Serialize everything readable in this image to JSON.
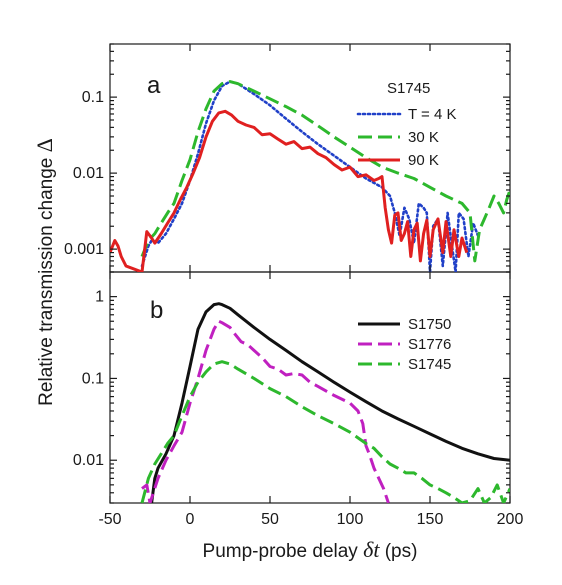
{
  "chart_data": [
    {
      "panel": "a",
      "type": "line",
      "yscale": "log",
      "xlim": [
        -50,
        200
      ],
      "ylim": [
        0.0005,
        0.5
      ],
      "xlabel": "Pump-probe delay δt (ps)",
      "ylabel": "Relative transmission change Δ",
      "yticks": [
        0.001,
        0.01,
        0.1
      ],
      "ytick_labels": [
        "0.001",
        "0.01",
        "0.1"
      ],
      "legend_title": "S1745",
      "legend_position": "top-right",
      "series": [
        {
          "name": "T = 4 K",
          "color": "#2040c8",
          "style": "dotted",
          "points": [
            [
              -30,
              0.0006
            ],
            [
              -26,
              0.0011
            ],
            [
              -24,
              0.0013
            ],
            [
              -20,
              0.0012
            ],
            [
              -15,
              0.0016
            ],
            [
              -10,
              0.0025
            ],
            [
              -5,
              0.004
            ],
            [
              0,
              0.008
            ],
            [
              5,
              0.018
            ],
            [
              10,
              0.045
            ],
            [
              15,
              0.09
            ],
            [
              20,
              0.14
            ],
            [
              25,
              0.16
            ],
            [
              30,
              0.15
            ],
            [
              40,
              0.11
            ],
            [
              50,
              0.078
            ],
            [
              60,
              0.052
            ],
            [
              70,
              0.035
            ],
            [
              80,
              0.024
            ],
            [
              90,
              0.017
            ],
            [
              100,
              0.012
            ],
            [
              110,
              0.0085
            ],
            [
              120,
              0.0065
            ],
            [
              125,
              0.005
            ],
            [
              128,
              0.003
            ],
            [
              131,
              0.0015
            ],
            [
              134,
              0.0035
            ],
            [
              137,
              0.0025
            ],
            [
              140,
              0.0012
            ],
            [
              143,
              0.004
            ],
            [
              146,
              0.0035
            ],
            [
              148,
              0.003
            ],
            [
              150,
              0.0005
            ],
            [
              152,
              0.002
            ],
            [
              155,
              0.0025
            ],
            [
              158,
              0.0006
            ],
            [
              161,
              0.003
            ],
            [
              164,
              0.001
            ],
            [
              166,
              0.0005
            ],
            [
              168,
              0.003
            ],
            [
              171,
              0.0025
            ],
            [
              174,
              0.0008
            ],
            [
              177,
              0.0022
            ],
            [
              180,
              0.0015
            ]
          ]
        },
        {
          "name": "30 K",
          "color": "#2db82d",
          "style": "dashed",
          "points": [
            [
              -30,
              0.0008
            ],
            [
              -26,
              0.0013
            ],
            [
              -22,
              0.0016
            ],
            [
              -18,
              0.0022
            ],
            [
              -14,
              0.003
            ],
            [
              -10,
              0.004
            ],
            [
              -5,
              0.008
            ],
            [
              0,
              0.015
            ],
            [
              5,
              0.035
            ],
            [
              10,
              0.07
            ],
            [
              15,
              0.12
            ],
            [
              20,
              0.15
            ],
            [
              25,
              0.16
            ],
            [
              30,
              0.15
            ],
            [
              40,
              0.12
            ],
            [
              50,
              0.095
            ],
            [
              60,
              0.075
            ],
            [
              70,
              0.058
            ],
            [
              80,
              0.042
            ],
            [
              90,
              0.03
            ],
            [
              100,
              0.022
            ],
            [
              110,
              0.016
            ],
            [
              120,
              0.012
            ],
            [
              130,
              0.01
            ],
            [
              140,
              0.0085
            ],
            [
              150,
              0.0065
            ],
            [
              160,
              0.005
            ],
            [
              170,
              0.004
            ],
            [
              175,
              0.003
            ],
            [
              178,
              0.0007
            ],
            [
              181,
              0.0018
            ],
            [
              184,
              0.0025
            ],
            [
              187,
              0.0035
            ],
            [
              190,
              0.005
            ],
            [
              193,
              0.004
            ],
            [
              196,
              0.003
            ],
            [
              198,
              0.0045
            ],
            [
              200,
              0.006
            ]
          ]
        },
        {
          "name": "90 K",
          "color": "#e02020",
          "style": "solid",
          "points": [
            [
              -50,
              0.0009
            ],
            [
              -47,
              0.0013
            ],
            [
              -45,
              0.0011
            ],
            [
              -43,
              0.0008
            ],
            [
              -40,
              0.0006
            ],
            [
              -30,
              0.0005
            ],
            [
              -27,
              0.0017
            ],
            [
              -24,
              0.0014
            ],
            [
              -22,
              0.0012
            ],
            [
              -18,
              0.0016
            ],
            [
              -14,
              0.0022
            ],
            [
              -10,
              0.003
            ],
            [
              -6,
              0.0045
            ],
            [
              -2,
              0.0065
            ],
            [
              2,
              0.01
            ],
            [
              6,
              0.016
            ],
            [
              10,
              0.03
            ],
            [
              14,
              0.048
            ],
            [
              18,
              0.062
            ],
            [
              22,
              0.065
            ],
            [
              26,
              0.058
            ],
            [
              30,
              0.048
            ],
            [
              35,
              0.043
            ],
            [
              40,
              0.04
            ],
            [
              45,
              0.032
            ],
            [
              50,
              0.033
            ],
            [
              55,
              0.028
            ],
            [
              60,
              0.024
            ],
            [
              65,
              0.026
            ],
            [
              70,
              0.021
            ],
            [
              75,
              0.022
            ],
            [
              80,
              0.018
            ],
            [
              85,
              0.016
            ],
            [
              90,
              0.013
            ],
            [
              95,
              0.011
            ],
            [
              100,
              0.012
            ],
            [
              105,
              0.009
            ],
            [
              110,
              0.0095
            ],
            [
              115,
              0.008
            ],
            [
              118,
              0.0085
            ],
            [
              120,
              0.009
            ],
            [
              122,
              0.0035
            ],
            [
              124,
              0.0018
            ],
            [
              126,
              0.0012
            ],
            [
              128,
              0.0028
            ],
            [
              130,
              0.003
            ],
            [
              132,
              0.0013
            ],
            [
              134,
              0.0016
            ],
            [
              136,
              0.0023
            ],
            [
              138,
              0.0008
            ],
            [
              140,
              0.0018
            ],
            [
              142,
              0.0022
            ],
            [
              144,
              0.0007
            ],
            [
              146,
              0.0016
            ],
            [
              148,
              0.0024
            ],
            [
              150,
              0.0008
            ],
            [
              152,
              0.0018
            ],
            [
              155,
              0.0025
            ],
            [
              158,
              0.0009
            ],
            [
              160,
              0.0023
            ],
            [
              163,
              0.0008
            ],
            [
              165,
              0.0018
            ],
            [
              168,
              0.0008
            ],
            [
              170,
              0.0014
            ],
            [
              173,
              0.0009
            ]
          ]
        }
      ]
    },
    {
      "panel": "b",
      "type": "line",
      "yscale": "log",
      "xlim": [
        -50,
        200
      ],
      "ylim": [
        0.003,
        2
      ],
      "xlabel": "Pump-probe delay δt (ps)",
      "ylabel": "Relative transmission change Δ",
      "xticks": [
        -50,
        0,
        50,
        100,
        150,
        200
      ],
      "xtick_labels": [
        "-50",
        "0",
        "50",
        "100",
        "150",
        "200"
      ],
      "yticks": [
        0.01,
        0.1,
        1
      ],
      "ytick_labels": [
        "0.01",
        "0.1",
        "1"
      ],
      "legend_position": "top-right",
      "series": [
        {
          "name": "S1750",
          "color": "#111111",
          "style": "solid",
          "points": [
            [
              -24,
              0.003
            ],
            [
              -22,
              0.006
            ],
            [
              -20,
              0.008
            ],
            [
              -15,
              0.012
            ],
            [
              -10,
              0.02
            ],
            [
              -5,
              0.05
            ],
            [
              0,
              0.14
            ],
            [
              5,
              0.4
            ],
            [
              10,
              0.65
            ],
            [
              15,
              0.8
            ],
            [
              18,
              0.82
            ],
            [
              20,
              0.8
            ],
            [
              25,
              0.72
            ],
            [
              30,
              0.6
            ],
            [
              40,
              0.42
            ],
            [
              50,
              0.3
            ],
            [
              60,
              0.22
            ],
            [
              70,
              0.16
            ],
            [
              80,
              0.12
            ],
            [
              90,
              0.09
            ],
            [
              100,
              0.068
            ],
            [
              110,
              0.052
            ],
            [
              120,
              0.04
            ],
            [
              130,
              0.032
            ],
            [
              140,
              0.026
            ],
            [
              150,
              0.021
            ],
            [
              160,
              0.017
            ],
            [
              170,
              0.014
            ],
            [
              180,
              0.012
            ],
            [
              190,
              0.0105
            ],
            [
              200,
              0.01
            ]
          ]
        },
        {
          "name": "S1776",
          "color": "#c020c0",
          "style": "dashed",
          "points": [
            [
              -30,
              0.0045
            ],
            [
              -27,
              0.005
            ],
            [
              -25,
              0.003
            ],
            [
              -20,
              0.006
            ],
            [
              -15,
              0.01
            ],
            [
              -10,
              0.015
            ],
            [
              -5,
              0.022
            ],
            [
              0,
              0.05
            ],
            [
              5,
              0.1
            ],
            [
              10,
              0.22
            ],
            [
              15,
              0.4
            ],
            [
              18,
              0.5
            ],
            [
              20,
              0.48
            ],
            [
              25,
              0.42
            ],
            [
              28,
              0.35
            ],
            [
              32,
              0.28
            ],
            [
              36,
              0.26
            ],
            [
              40,
              0.22
            ],
            [
              45,
              0.18
            ],
            [
              50,
              0.14
            ],
            [
              55,
              0.13
            ],
            [
              60,
              0.11
            ],
            [
              65,
              0.115
            ],
            [
              70,
              0.11
            ],
            [
              75,
              0.09
            ],
            [
              80,
              0.08
            ],
            [
              90,
              0.062
            ],
            [
              100,
              0.05
            ],
            [
              105,
              0.04
            ],
            [
              108,
              0.028
            ],
            [
              110,
              0.015
            ],
            [
              112,
              0.012
            ],
            [
              115,
              0.008
            ],
            [
              118,
              0.006
            ],
            [
              121,
              0.0045
            ],
            [
              124,
              0.003
            ]
          ]
        },
        {
          "name": "S1745",
          "color": "#2db82d",
          "style": "dashed",
          "points": [
            [
              -30,
              0.003
            ],
            [
              -26,
              0.006
            ],
            [
              -22,
              0.009
            ],
            [
              -18,
              0.012
            ],
            [
              -14,
              0.016
            ],
            [
              -10,
              0.02
            ],
            [
              -5,
              0.035
            ],
            [
              0,
              0.06
            ],
            [
              5,
              0.09
            ],
            [
              10,
              0.12
            ],
            [
              15,
              0.15
            ],
            [
              20,
              0.16
            ],
            [
              25,
              0.15
            ],
            [
              30,
              0.13
            ],
            [
              40,
              0.1
            ],
            [
              50,
              0.075
            ],
            [
              60,
              0.06
            ],
            [
              70,
              0.045
            ],
            [
              80,
              0.035
            ],
            [
              90,
              0.028
            ],
            [
              100,
              0.022
            ],
            [
              110,
              0.016
            ],
            [
              115,
              0.014
            ],
            [
              120,
              0.011
            ],
            [
              125,
              0.009
            ],
            [
              130,
              0.008
            ],
            [
              135,
              0.007
            ],
            [
              140,
              0.007
            ],
            [
              145,
              0.006
            ],
            [
              150,
              0.005
            ],
            [
              155,
              0.0045
            ],
            [
              160,
              0.004
            ],
            [
              165,
              0.0035
            ],
            [
              170,
              0.003
            ],
            [
              175,
              0.0032
            ],
            [
              180,
              0.0045
            ],
            [
              184,
              0.003
            ],
            [
              188,
              0.0035
            ],
            [
              192,
              0.005
            ],
            [
              196,
              0.003
            ],
            [
              200,
              0.0045
            ]
          ]
        }
      ]
    }
  ],
  "figure": {
    "xlabel_prefix": "Pump-probe delay ",
    "xlabel_var": "δt",
    "xlabel_unit": " (ps)",
    "ylabel_text": "Relative transmission change ",
    "ylabel_symbol": "Δ"
  }
}
